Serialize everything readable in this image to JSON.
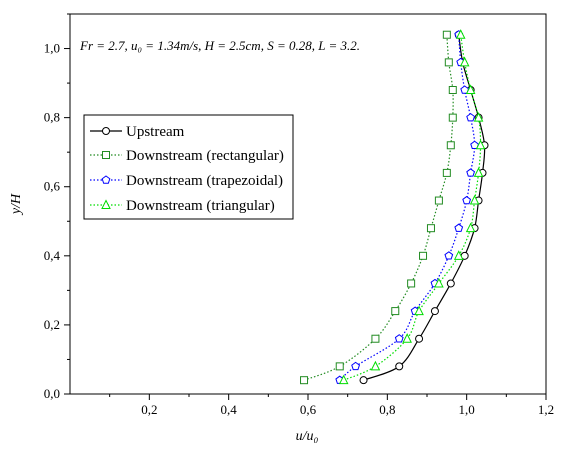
{
  "chart_data": {
    "type": "line",
    "title": "",
    "annotation": "Fr = 2.7,  u₀ = 1.34m/s,  H = 2.5cm, S = 0.28,  L = 3.2.",
    "xlabel": "u/u₀",
    "ylabel": "y/H",
    "xlim": [
      0,
      1.2
    ],
    "ylim": [
      0,
      1.1
    ],
    "xticks": [
      0.2,
      0.4,
      0.6,
      0.8,
      1.0,
      1.2
    ],
    "xtick_labels": [
      "0,2",
      "0,4",
      "0,6",
      "0,8",
      "1,0",
      "1,2"
    ],
    "yticks": [
      0.0,
      0.2,
      0.4,
      0.6,
      0.8,
      1.0
    ],
    "ytick_labels": [
      "0,0",
      "0,2",
      "0,4",
      "0,6",
      "0,8",
      "1,0"
    ],
    "legend_position": "left",
    "series": [
      {
        "name": "Upstream",
        "color": "#000000",
        "line": "solid",
        "marker": "circle",
        "points": [
          [
            0.74,
            0.04
          ],
          [
            0.83,
            0.08
          ],
          [
            0.88,
            0.16
          ],
          [
            0.92,
            0.24
          ],
          [
            0.96,
            0.32
          ],
          [
            0.995,
            0.4
          ],
          [
            1.02,
            0.48
          ],
          [
            1.03,
            0.56
          ],
          [
            1.04,
            0.64
          ],
          [
            1.045,
            0.72
          ],
          [
            1.03,
            0.8
          ],
          [
            1.01,
            0.88
          ],
          [
            0.99,
            0.96
          ],
          [
            0.98,
            1.04
          ]
        ]
      },
      {
        "name": "Downstream (rectangular)",
        "color": "#228b22",
        "line": "dotted",
        "marker": "square",
        "points": [
          [
            0.59,
            0.04
          ],
          [
            0.68,
            0.08
          ],
          [
            0.77,
            0.16
          ],
          [
            0.82,
            0.24
          ],
          [
            0.86,
            0.32
          ],
          [
            0.89,
            0.4
          ],
          [
            0.91,
            0.48
          ],
          [
            0.93,
            0.56
          ],
          [
            0.95,
            0.64
          ],
          [
            0.96,
            0.72
          ],
          [
            0.965,
            0.8
          ],
          [
            0.965,
            0.88
          ],
          [
            0.955,
            0.96
          ],
          [
            0.95,
            1.04
          ]
        ]
      },
      {
        "name": "Downstream (trapezoidal)",
        "color": "#0000ff",
        "line": "dotted",
        "marker": "pentagon",
        "points": [
          [
            0.68,
            0.04
          ],
          [
            0.72,
            0.08
          ],
          [
            0.83,
            0.16
          ],
          [
            0.87,
            0.24
          ],
          [
            0.92,
            0.32
          ],
          [
            0.955,
            0.4
          ],
          [
            0.98,
            0.48
          ],
          [
            1.0,
            0.56
          ],
          [
            1.01,
            0.64
          ],
          [
            1.02,
            0.72
          ],
          [
            1.01,
            0.8
          ],
          [
            0.995,
            0.88
          ],
          [
            0.985,
            0.96
          ],
          [
            0.98,
            1.04
          ]
        ]
      },
      {
        "name": "Downstream (triangular)",
        "color": "#00dd00",
        "line": "dotted",
        "marker": "triangle",
        "points": [
          [
            0.69,
            0.04
          ],
          [
            0.77,
            0.08
          ],
          [
            0.85,
            0.16
          ],
          [
            0.88,
            0.24
          ],
          [
            0.93,
            0.32
          ],
          [
            0.98,
            0.4
          ],
          [
            1.01,
            0.48
          ],
          [
            1.02,
            0.56
          ],
          [
            1.03,
            0.64
          ],
          [
            1.035,
            0.72
          ],
          [
            1.03,
            0.8
          ],
          [
            1.01,
            0.88
          ],
          [
            0.995,
            0.96
          ],
          [
            0.985,
            1.04
          ]
        ]
      }
    ]
  }
}
